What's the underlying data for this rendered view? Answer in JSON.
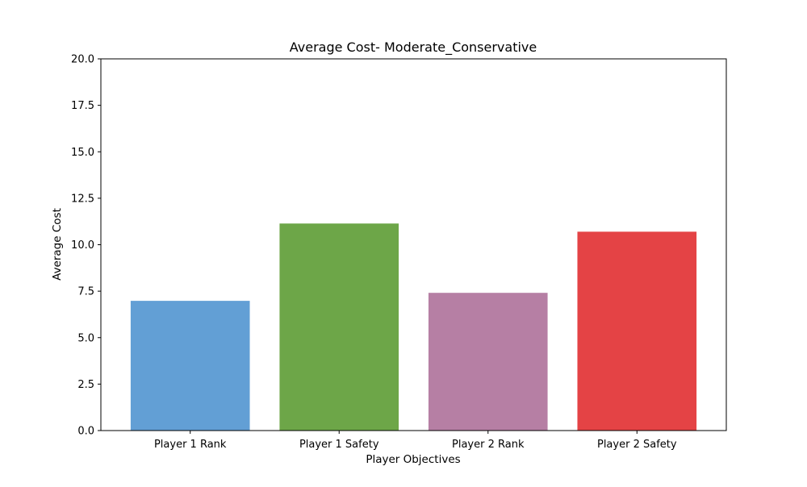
{
  "chart_data": {
    "type": "bar",
    "title": "Average Cost- Moderate_Conservative",
    "xlabel": "Player Objectives",
    "ylabel": "Average Cost",
    "categories": [
      "Player 1 Rank",
      "Player 1 Safety",
      "Player 2 Rank",
      "Player 2 Safety"
    ],
    "values": [
      6.98,
      11.14,
      7.41,
      10.7
    ],
    "colors": [
      "#629fd5",
      "#6da648",
      "#b67fa4",
      "#e44345"
    ],
    "ylim": [
      0,
      20
    ],
    "yticks": [
      "0.0",
      "2.5",
      "5.0",
      "7.5",
      "10.0",
      "12.5",
      "15.0",
      "17.5",
      "20.0"
    ],
    "ytick_values": [
      0,
      2.5,
      5,
      7.5,
      10,
      12.5,
      15,
      17.5,
      20
    ],
    "grid": false,
    "legend": "none"
  }
}
